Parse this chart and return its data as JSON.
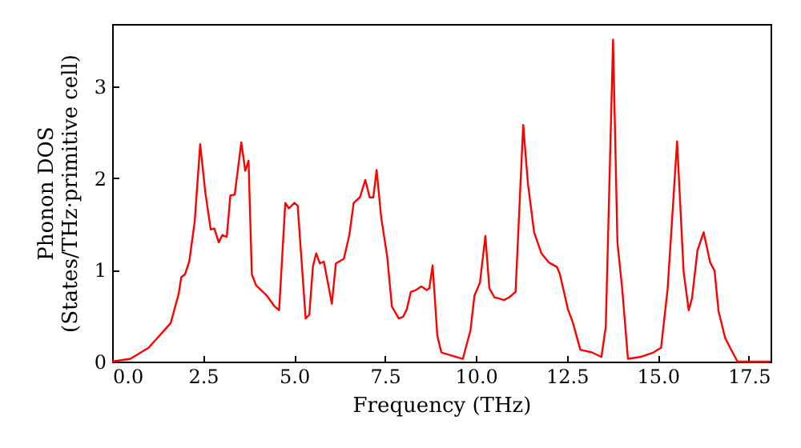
{
  "chart_data": {
    "type": "line",
    "xlabel": "Frequency (THz)",
    "ylabel": "Phonon DOS\n(States/THz·primitive cell)",
    "x": [
      0,
      0.5,
      1.0,
      1.61,
      1.83,
      1.9,
      2.0,
      2.12,
      2.27,
      2.42,
      2.56,
      2.71,
      2.81,
      2.93,
      3.03,
      3.15,
      3.25,
      3.37,
      3.55,
      3.66,
      3.75,
      3.84,
      3.96,
      4.25,
      4.47,
      4.59,
      4.76,
      4.86,
      5.01,
      5.1,
      5.32,
      5.42,
      5.52,
      5.61,
      5.71,
      5.82,
      6.04,
      6.15,
      6.37,
      6.52,
      6.64,
      6.81,
      6.96,
      7.08,
      7.18,
      7.27,
      7.4,
      7.56,
      7.69,
      7.88,
      8.0,
      8.1,
      8.21,
      8.35,
      8.5,
      8.65,
      8.72,
      8.81,
      8.94,
      9.05,
      9.64,
      9.85,
      9.96,
      10.11,
      10.26,
      10.37,
      10.51,
      10.62,
      10.77,
      10.91,
      11.09,
      11.3,
      11.43,
      11.6,
      11.8,
      12.01,
      12.23,
      12.31,
      12.53,
      12.67,
      12.87,
      13.19,
      13.45,
      13.57,
      13.77,
      13.89,
      14.02,
      14.18,
      14.51,
      14.88,
      15.09,
      15.27,
      15.53,
      15.71,
      15.85,
      15.94,
      16.09,
      16.26,
      16.44,
      16.56,
      16.67,
      16.85,
      17.03,
      17.19,
      18.1
    ],
    "series": [
      {
        "color": "#ff0000",
        "values": [
          0,
          0.03,
          0.15,
          0.42,
          0.74,
          0.92,
          0.95,
          1.09,
          1.53,
          2.37,
          1.85,
          1.44,
          1.45,
          1.3,
          1.38,
          1.36,
          1.81,
          1.82,
          2.39,
          2.08,
          2.19,
          0.95,
          0.83,
          0.72,
          0.6,
          0.56,
          1.73,
          1.67,
          1.73,
          1.7,
          0.47,
          0.51,
          1.04,
          1.18,
          1.07,
          1.09,
          0.63,
          1.07,
          1.12,
          1.38,
          1.73,
          1.79,
          1.98,
          1.79,
          1.79,
          2.09,
          1.56,
          1.15,
          0.6,
          0.47,
          0.49,
          0.57,
          0.76,
          0.78,
          0.82,
          0.78,
          0.8,
          1.05,
          0.28,
          0.1,
          0.03,
          0.34,
          0.72,
          0.86,
          1.37,
          0.8,
          0.7,
          0.69,
          0.67,
          0.7,
          0.76,
          2.58,
          1.94,
          1.41,
          1.18,
          1.08,
          1.03,
          0.95,
          0.57,
          0.42,
          0.13,
          0.1,
          0.05,
          0.38,
          3.51,
          1.3,
          0.8,
          0.03,
          0.05,
          0.1,
          0.15,
          0.79,
          2.4,
          0.98,
          0.56,
          0.69,
          1.21,
          1.41,
          1.08,
          0.99,
          0.55,
          0.26,
          0.12,
          0,
          0
        ]
      }
    ],
    "xlim": [
      0,
      18.1
    ],
    "ylim": [
      0,
      3.68
    ],
    "xticks": [
      {
        "value": 0,
        "label": "0.0"
      },
      {
        "value": 2.5,
        "label": "2.5"
      },
      {
        "value": 5,
        "label": "5.0"
      },
      {
        "value": 7.5,
        "label": "7.5"
      },
      {
        "value": 10,
        "label": "10.0"
      },
      {
        "value": 12.5,
        "label": "12.5"
      },
      {
        "value": 15,
        "label": "15.0"
      },
      {
        "value": 17.5,
        "label": "17.5"
      }
    ],
    "yticks": [
      0,
      1,
      2,
      3
    ],
    "marker": "none",
    "line_style": "solid"
  }
}
